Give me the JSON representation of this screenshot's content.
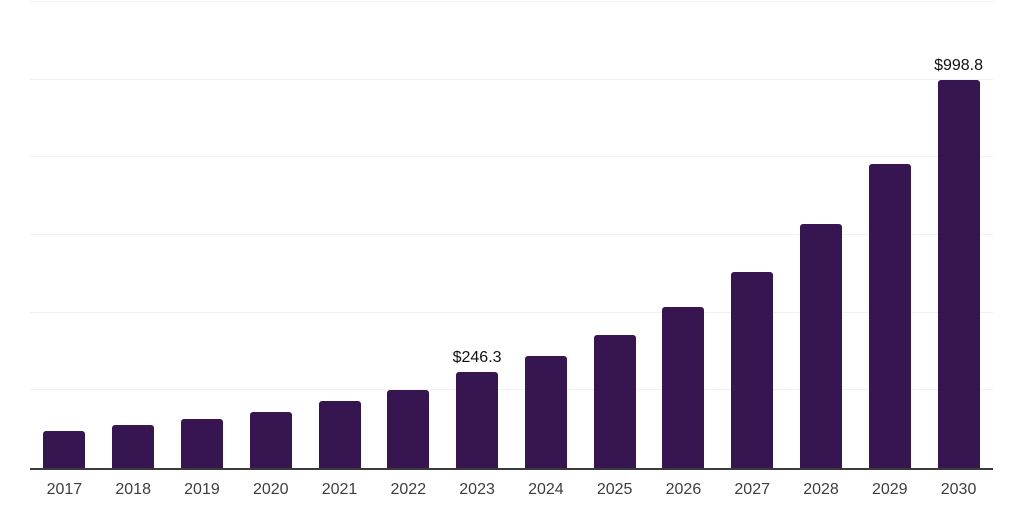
{
  "chart_data": {
    "type": "bar",
    "title": "",
    "xlabel": "",
    "ylabel": "",
    "categories": [
      "2017",
      "2018",
      "2019",
      "2020",
      "2021",
      "2022",
      "2023",
      "2024",
      "2025",
      "2026",
      "2027",
      "2028",
      "2029",
      "2030"
    ],
    "values": [
      96.5,
      111.0,
      126.5,
      143.5,
      173.5,
      201.0,
      246.3,
      287.5,
      342.5,
      415.0,
      505.0,
      628.0,
      782.0,
      998.8
    ],
    "annotations": [
      {
        "category": "2023",
        "label": "$246.3"
      },
      {
        "category": "2030",
        "label": "$998.8"
      }
    ],
    "ylim": [
      0,
      1200
    ],
    "gridline_step": 200,
    "grid": "horizontal-only",
    "y_axis_labels_visible": false,
    "legend_position": "none"
  },
  "colors": {
    "background": "#ffffff",
    "bar": "#371551",
    "axis_line": "#3b3b3b",
    "gridline": "#f1f1f1",
    "tick_label": "#3d3d3d",
    "data_label": "#111111"
  }
}
